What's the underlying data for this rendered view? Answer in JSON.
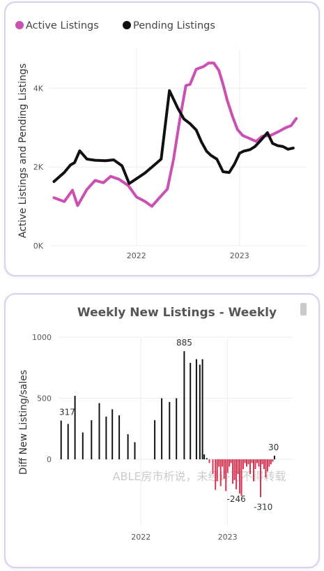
{
  "colors": {
    "active": "#cc4fb3",
    "pending": "#111111",
    "pos_bar": "#111111",
    "neg_bar": "#d43552",
    "grid": "#eeeeee",
    "axis_text": "#555555"
  },
  "watermark": "ABLE房市析说，未经许可不得转载",
  "chart_data": [
    {
      "type": "line",
      "title": "",
      "xlabel": "",
      "ylabel": "Active Listings and Pending Listings",
      "ylim": [
        0,
        5000
      ],
      "yticks": [
        "0K",
        "2K",
        "4K"
      ],
      "ytick_values": [
        0,
        2000,
        4000
      ],
      "xticks": [
        "2022",
        "2023"
      ],
      "xtick_values": [
        2022.0,
        2023.0
      ],
      "xlim": [
        2021.15,
        2023.65
      ],
      "legend": "top-left",
      "series": [
        {
          "name": "Active Listings",
          "color": "#cc4fb3",
          "x": [
            2021.2,
            2021.3,
            2021.38,
            2021.43,
            2021.52,
            2021.6,
            2021.68,
            2021.75,
            2021.83,
            2021.92,
            2022.0,
            2022.08,
            2022.15,
            2022.22,
            2022.3,
            2022.36,
            2022.42,
            2022.48,
            2022.52,
            2022.58,
            2022.65,
            2022.7,
            2022.75,
            2022.8,
            2022.84,
            2022.88,
            2022.93,
            2022.98,
            2023.03,
            2023.1,
            2023.16,
            2023.22,
            2023.3,
            2023.38,
            2023.45,
            2023.5,
            2023.55
          ],
          "y": [
            1220,
            1120,
            1410,
            1020,
            1430,
            1660,
            1600,
            1760,
            1690,
            1530,
            1240,
            1130,
            1000,
            1210,
            1440,
            2200,
            3200,
            4070,
            4100,
            4480,
            4550,
            4640,
            4640,
            4450,
            4100,
            3700,
            3300,
            2950,
            2800,
            2720,
            2650,
            2780,
            2800,
            2900,
            3000,
            3050,
            3230
          ]
        },
        {
          "name": "Pending Listings",
          "color": "#111111",
          "x": [
            2021.2,
            2021.3,
            2021.36,
            2021.4,
            2021.45,
            2021.52,
            2021.6,
            2021.7,
            2021.78,
            2021.86,
            2021.93,
            2022.0,
            2022.08,
            2022.16,
            2022.24,
            2022.32,
            2022.4,
            2022.46,
            2022.52,
            2022.58,
            2022.63,
            2022.68,
            2022.72,
            2022.78,
            2022.84,
            2022.9,
            2022.95,
            2023.0,
            2023.04,
            2023.1,
            2023.15,
            2023.2,
            2023.27,
            2023.32,
            2023.37,
            2023.42,
            2023.47,
            2023.52
          ],
          "y": [
            1630,
            1860,
            2050,
            2110,
            2410,
            2200,
            2170,
            2160,
            2180,
            2030,
            1580,
            1700,
            1840,
            2020,
            2200,
            3940,
            3500,
            3220,
            3100,
            2940,
            2640,
            2400,
            2300,
            2200,
            1880,
            1860,
            2070,
            2350,
            2400,
            2440,
            2520,
            2660,
            2870,
            2600,
            2540,
            2520,
            2450,
            2480
          ]
        }
      ]
    },
    {
      "type": "bar",
      "title": "Weekly New Listings - Weekly",
      "xlabel": "",
      "ylabel": "Diff New Listing/sales",
      "ylim": [
        -600,
        1000
      ],
      "yticks": [
        "0",
        "500",
        "1000"
      ],
      "ytick_values": [
        0,
        500,
        1000
      ],
      "xticks": [
        "2022",
        "2023"
      ],
      "xtick_values": [
        2022.0,
        2023.0
      ],
      "xlim": [
        2021.05,
        2023.75
      ],
      "data_labels": [
        {
          "text": "317",
          "x": 2021.15,
          "y": 317
        },
        {
          "text": "885",
          "x": 2022.5,
          "y": 885
        },
        {
          "text": "-246",
          "x": 2023.1,
          "y": -246
        },
        {
          "text": "-310",
          "x": 2023.41,
          "y": -310
        },
        {
          "text": "30",
          "x": 2023.53,
          "y": 30
        }
      ],
      "series": [
        {
          "name": "Diff New Listing/sales",
          "x": [
            2021.08,
            2021.16,
            2021.24,
            2021.33,
            2021.43,
            2021.52,
            2021.6,
            2021.67,
            2021.75,
            2021.85,
            2021.93,
            2022.16,
            2022.24,
            2022.33,
            2022.41,
            2022.5,
            2022.57,
            2022.64,
            2022.68,
            2022.71,
            2022.73,
            2022.76,
            2022.79,
            2022.83,
            2022.86,
            2022.88,
            2022.9,
            2022.92,
            2022.94,
            2022.96,
            2022.98,
            2023.0,
            2023.02,
            2023.04,
            2023.06,
            2023.08,
            2023.1,
            2023.12,
            2023.14,
            2023.16,
            2023.18,
            2023.2,
            2023.22,
            2023.24,
            2023.26,
            2023.28,
            2023.3,
            2023.32,
            2023.34,
            2023.36,
            2023.38,
            2023.4,
            2023.42,
            2023.44,
            2023.46,
            2023.48,
            2023.5,
            2023.52,
            2023.54
          ],
          "values": [
            317,
            290,
            520,
            220,
            320,
            460,
            350,
            410,
            360,
            205,
            140,
            320,
            500,
            470,
            500,
            885,
            790,
            820,
            775,
            820,
            40,
            10,
            -30,
            -120,
            -250,
            -180,
            -60,
            -220,
            -60,
            -160,
            -260,
            -110,
            -60,
            -30,
            -200,
            -170,
            -246,
            -120,
            -280,
            -300,
            -80,
            -30,
            -60,
            -40,
            -120,
            -30,
            -180,
            -80,
            -30,
            -60,
            -310,
            -40,
            -80,
            -150,
            -100,
            -60,
            -40,
            -20,
            30
          ]
        }
      ]
    }
  ]
}
